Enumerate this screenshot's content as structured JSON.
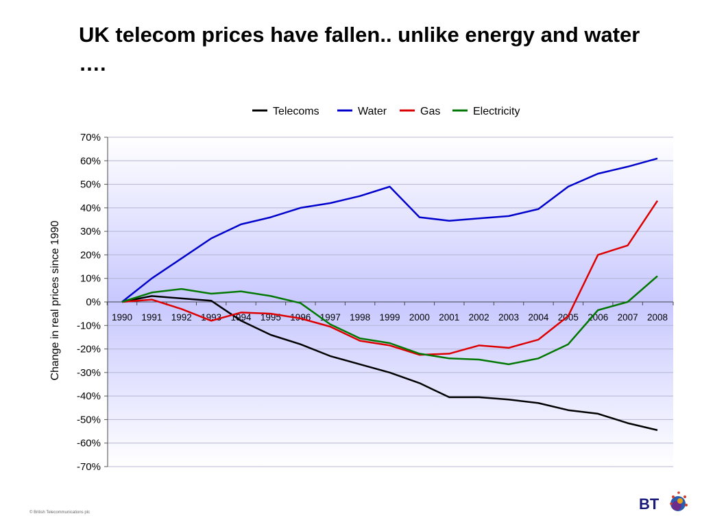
{
  "slide": {
    "title": "UK telecom prices have fallen.. unlike energy and water ….",
    "footer": "© British Telecommunications plc",
    "logo_text": "BT"
  },
  "chart_data": {
    "type": "line",
    "title": "",
    "xlabel": "",
    "ylabel": "Change in real prices since 1990",
    "categories": [
      "1990",
      "1991",
      "1992",
      "1993",
      "1994",
      "1995",
      "1996",
      "1997",
      "1998",
      "1999",
      "2000",
      "2001",
      "2002",
      "2003",
      "2004",
      "2005",
      "2006",
      "2007",
      "2008"
    ],
    "ylim": [
      -70,
      70
    ],
    "yticks": [
      70,
      60,
      50,
      40,
      30,
      20,
      10,
      0,
      -10,
      -20,
      -30,
      -40,
      -50,
      -60,
      -70
    ],
    "ytick_format": "percent",
    "legend_position": "top",
    "background": "vertical gradient, white at top and bottom, light lavender at zero line",
    "grid": true,
    "series": [
      {
        "name": "Telecoms",
        "color": "#000000",
        "values": [
          0,
          2.5,
          1.5,
          0.5,
          -8,
          -14,
          -18,
          -23,
          -26.5,
          -30,
          -34.5,
          -40.5,
          -40.5,
          -41.5,
          -43,
          -46,
          -47.5,
          -51.5,
          -54.5
        ]
      },
      {
        "name": "Water",
        "color": "#0000CC",
        "values": [
          0,
          10,
          18.5,
          27,
          33,
          36,
          40,
          42,
          45,
          49,
          36,
          34.5,
          35.5,
          36.5,
          39.5,
          49,
          54.5,
          57.5,
          61
        ]
      },
      {
        "name": "Gas",
        "color": "#DD0000",
        "values": [
          0,
          1,
          -3,
          -8,
          -4.5,
          -5,
          -7,
          -10.5,
          -16.5,
          -18.5,
          -22.5,
          -22,
          -18.5,
          -19.5,
          -16,
          -6,
          20,
          24,
          43
        ]
      },
      {
        "name": "Electricity",
        "color": "#007700",
        "values": [
          0,
          4,
          5.5,
          3.5,
          4.5,
          2.5,
          -0.5,
          -9.5,
          -15.5,
          -17.5,
          -22,
          -24,
          -24.5,
          -26.5,
          -24,
          -18,
          -3.5,
          0,
          11
        ]
      }
    ]
  }
}
